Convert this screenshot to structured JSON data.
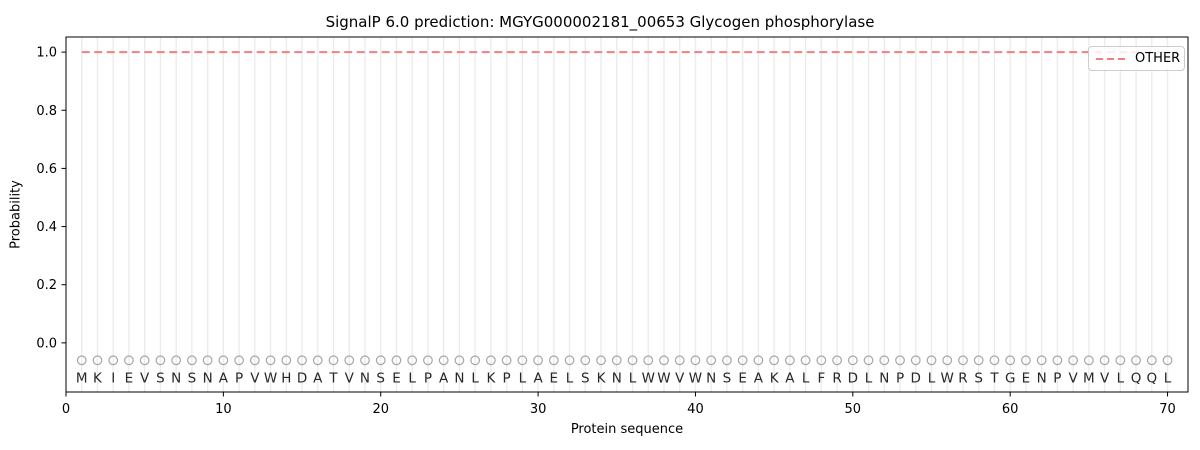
{
  "chart_data": {
    "type": "line",
    "title": "SignalP 6.0 prediction: MGYG000002181_00653 Glycogen phosphorylase",
    "xlabel": "Protein sequence",
    "ylabel": "Probability",
    "xlim": [
      0,
      71.3
    ],
    "ylim": [
      -0.169,
      1.052
    ],
    "x_ticks": [
      0,
      10,
      20,
      30,
      40,
      50,
      60,
      70
    ],
    "y_ticks": [
      "0.0",
      "0.2",
      "0.4",
      "0.6",
      "0.8",
      "1.0"
    ],
    "grid": "light vertical gridline at every residue position 1-70",
    "legend_position": "upper right",
    "series": [
      {
        "name": "OTHER",
        "line_style": "dashed",
        "color": "#f08080",
        "x_start": 1,
        "x_end": 70,
        "constant_value": 1.0
      }
    ],
    "sequence": "MKIEVSNSNAPVWHDATVNSELPANLKPLAELSKNLWWVWNSEAKALFRDLNPDLWRSTGENPVMVLQQL",
    "sequence_marker": {
      "symbol": "open-circle",
      "color": "#a6a6a6",
      "y": -0.06
    },
    "sequence_letters_y": -0.12,
    "letter_color": "#262626",
    "gridline_color": "#ececec",
    "spine_color": "#000000"
  }
}
